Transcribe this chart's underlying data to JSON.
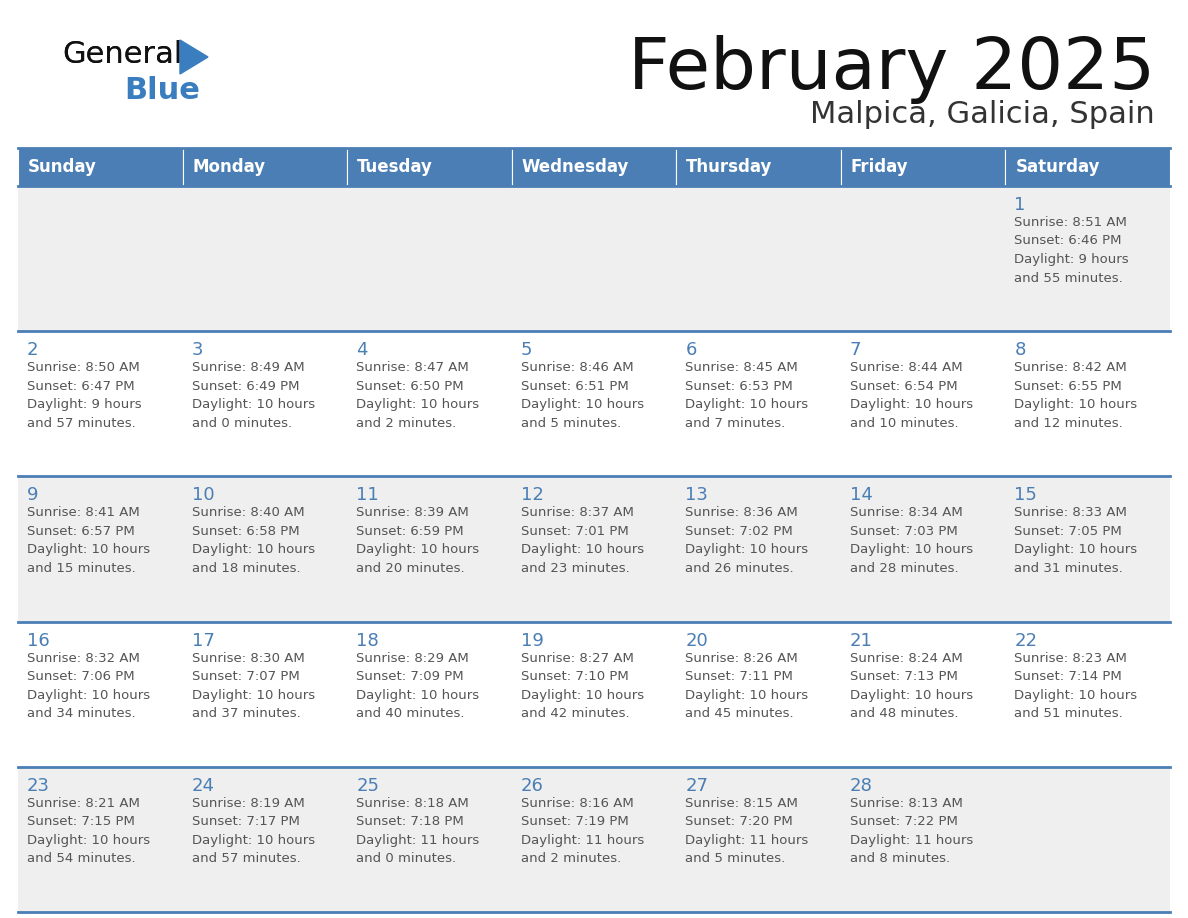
{
  "title": "February 2025",
  "subtitle": "Malpica, Galicia, Spain",
  "header_bg": "#4a7eb5",
  "header_text_color": "#ffffff",
  "cell_bg_light": "#efefef",
  "cell_bg_white": "#ffffff",
  "day_number_color": "#4a7eb5",
  "info_text_color": "#555555",
  "separator_color": "#4a7eb5",
  "days_of_week": [
    "Sunday",
    "Monday",
    "Tuesday",
    "Wednesday",
    "Thursday",
    "Friday",
    "Saturday"
  ],
  "weeks": [
    [
      {
        "day": null,
        "info": ""
      },
      {
        "day": null,
        "info": ""
      },
      {
        "day": null,
        "info": ""
      },
      {
        "day": null,
        "info": ""
      },
      {
        "day": null,
        "info": ""
      },
      {
        "day": null,
        "info": ""
      },
      {
        "day": 1,
        "info": "Sunrise: 8:51 AM\nSunset: 6:46 PM\nDaylight: 9 hours\nand 55 minutes."
      }
    ],
    [
      {
        "day": 2,
        "info": "Sunrise: 8:50 AM\nSunset: 6:47 PM\nDaylight: 9 hours\nand 57 minutes."
      },
      {
        "day": 3,
        "info": "Sunrise: 8:49 AM\nSunset: 6:49 PM\nDaylight: 10 hours\nand 0 minutes."
      },
      {
        "day": 4,
        "info": "Sunrise: 8:47 AM\nSunset: 6:50 PM\nDaylight: 10 hours\nand 2 minutes."
      },
      {
        "day": 5,
        "info": "Sunrise: 8:46 AM\nSunset: 6:51 PM\nDaylight: 10 hours\nand 5 minutes."
      },
      {
        "day": 6,
        "info": "Sunrise: 8:45 AM\nSunset: 6:53 PM\nDaylight: 10 hours\nand 7 minutes."
      },
      {
        "day": 7,
        "info": "Sunrise: 8:44 AM\nSunset: 6:54 PM\nDaylight: 10 hours\nand 10 minutes."
      },
      {
        "day": 8,
        "info": "Sunrise: 8:42 AM\nSunset: 6:55 PM\nDaylight: 10 hours\nand 12 minutes."
      }
    ],
    [
      {
        "day": 9,
        "info": "Sunrise: 8:41 AM\nSunset: 6:57 PM\nDaylight: 10 hours\nand 15 minutes."
      },
      {
        "day": 10,
        "info": "Sunrise: 8:40 AM\nSunset: 6:58 PM\nDaylight: 10 hours\nand 18 minutes."
      },
      {
        "day": 11,
        "info": "Sunrise: 8:39 AM\nSunset: 6:59 PM\nDaylight: 10 hours\nand 20 minutes."
      },
      {
        "day": 12,
        "info": "Sunrise: 8:37 AM\nSunset: 7:01 PM\nDaylight: 10 hours\nand 23 minutes."
      },
      {
        "day": 13,
        "info": "Sunrise: 8:36 AM\nSunset: 7:02 PM\nDaylight: 10 hours\nand 26 minutes."
      },
      {
        "day": 14,
        "info": "Sunrise: 8:34 AM\nSunset: 7:03 PM\nDaylight: 10 hours\nand 28 minutes."
      },
      {
        "day": 15,
        "info": "Sunrise: 8:33 AM\nSunset: 7:05 PM\nDaylight: 10 hours\nand 31 minutes."
      }
    ],
    [
      {
        "day": 16,
        "info": "Sunrise: 8:32 AM\nSunset: 7:06 PM\nDaylight: 10 hours\nand 34 minutes."
      },
      {
        "day": 17,
        "info": "Sunrise: 8:30 AM\nSunset: 7:07 PM\nDaylight: 10 hours\nand 37 minutes."
      },
      {
        "day": 18,
        "info": "Sunrise: 8:29 AM\nSunset: 7:09 PM\nDaylight: 10 hours\nand 40 minutes."
      },
      {
        "day": 19,
        "info": "Sunrise: 8:27 AM\nSunset: 7:10 PM\nDaylight: 10 hours\nand 42 minutes."
      },
      {
        "day": 20,
        "info": "Sunrise: 8:26 AM\nSunset: 7:11 PM\nDaylight: 10 hours\nand 45 minutes."
      },
      {
        "day": 21,
        "info": "Sunrise: 8:24 AM\nSunset: 7:13 PM\nDaylight: 10 hours\nand 48 minutes."
      },
      {
        "day": 22,
        "info": "Sunrise: 8:23 AM\nSunset: 7:14 PM\nDaylight: 10 hours\nand 51 minutes."
      }
    ],
    [
      {
        "day": 23,
        "info": "Sunrise: 8:21 AM\nSunset: 7:15 PM\nDaylight: 10 hours\nand 54 minutes."
      },
      {
        "day": 24,
        "info": "Sunrise: 8:19 AM\nSunset: 7:17 PM\nDaylight: 10 hours\nand 57 minutes."
      },
      {
        "day": 25,
        "info": "Sunrise: 8:18 AM\nSunset: 7:18 PM\nDaylight: 11 hours\nand 0 minutes."
      },
      {
        "day": 26,
        "info": "Sunrise: 8:16 AM\nSunset: 7:19 PM\nDaylight: 11 hours\nand 2 minutes."
      },
      {
        "day": 27,
        "info": "Sunrise: 8:15 AM\nSunset: 7:20 PM\nDaylight: 11 hours\nand 5 minutes."
      },
      {
        "day": 28,
        "info": "Sunrise: 8:13 AM\nSunset: 7:22 PM\nDaylight: 11 hours\nand 8 minutes."
      },
      {
        "day": null,
        "info": ""
      }
    ]
  ],
  "logo_general_color": "#111111",
  "logo_blue_color": "#3a7ec0",
  "logo_triangle_color": "#3a7ec0"
}
